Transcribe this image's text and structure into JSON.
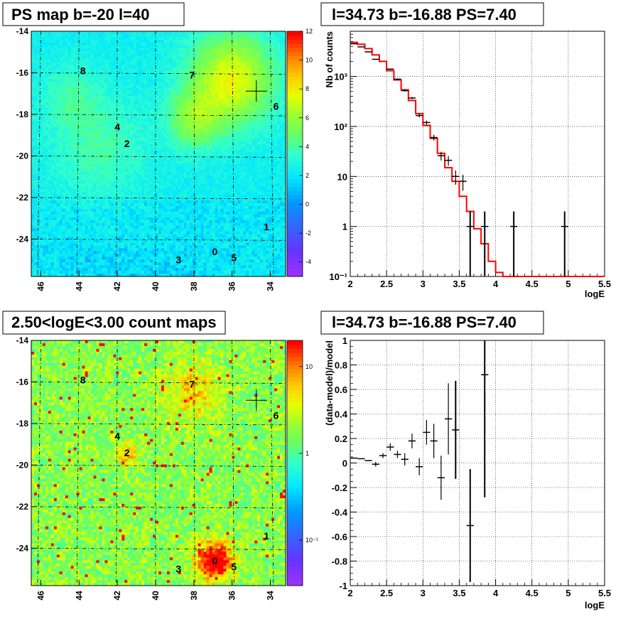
{
  "chart_data": [
    {
      "type": "heatmap",
      "panel": "top-left",
      "title": "PS map b=-20 l=40",
      "x_ticks": [
        "46",
        "44",
        "42",
        "40",
        "38",
        "36",
        "34"
      ],
      "y_ticks": [
        "-14",
        "-16",
        "-18",
        "-20",
        "-22",
        "-24"
      ],
      "xlim": [
        46.5,
        33.2
      ],
      "ylim": [
        -25.8,
        -14
      ],
      "colorbar": {
        "range": [
          -5,
          12
        ],
        "ticks": [
          "-4",
          "-2",
          "0",
          "2",
          "4",
          "6",
          "8",
          "10",
          "12"
        ],
        "log": false
      },
      "sources": [
        {
          "label": "0",
          "l": 36.9,
          "b": -24.6
        },
        {
          "label": "1",
          "l": 34.2,
          "b": -23.4
        },
        {
          "label": "2",
          "l": 41.5,
          "b": -19.4
        },
        {
          "label": "3",
          "l": 38.8,
          "b": -25.0
        },
        {
          "label": "4",
          "l": 42.0,
          "b": -18.6
        },
        {
          "label": "5",
          "l": 35.9,
          "b": -24.9
        },
        {
          "label": "6",
          "l": 33.7,
          "b": -17.6
        },
        {
          "label": "7",
          "l": 38.1,
          "b": -16.1
        },
        {
          "label": "8",
          "l": 43.8,
          "b": -15.9
        }
      ],
      "marker": {
        "l": 34.73,
        "b": -16.88
      }
    },
    {
      "type": "line",
      "panel": "top-right",
      "title": "l=34.73 b=-16.88 PS=7.40",
      "xlabel": "logE",
      "ylabel": "Nb of counts",
      "xlim": [
        2,
        5.5
      ],
      "ylim": [
        0.1,
        8000
      ],
      "yscale": "log",
      "x_ticks": [
        "2",
        "2.5",
        "3",
        "3.5",
        "4",
        "4.5",
        "5",
        "5.5"
      ],
      "y_ticks": [
        "10⁻¹",
        "1",
        "10",
        "10²",
        "10³"
      ],
      "grid": true,
      "data_points": [
        {
          "x": 2.05,
          "y": 4500
        },
        {
          "x": 2.15,
          "y": 3900
        },
        {
          "x": 2.25,
          "y": 3100
        },
        {
          "x": 2.35,
          "y": 2200
        },
        {
          "x": 2.55,
          "y": 1400
        },
        {
          "x": 2.65,
          "y": 880
        },
        {
          "x": 2.75,
          "y": 520
        },
        {
          "x": 2.85,
          "y": 370
        },
        {
          "x": 2.95,
          "y": 165
        },
        {
          "x": 3.05,
          "y": 120
        },
        {
          "x": 3.15,
          "y": 60
        },
        {
          "x": 3.25,
          "y": 26
        },
        {
          "x": 3.35,
          "y": 21
        },
        {
          "x": 3.45,
          "y": 10
        },
        {
          "x": 3.55,
          "y": 8
        },
        {
          "x": 3.65,
          "y": 1
        },
        {
          "x": 3.85,
          "y": 1
        },
        {
          "x": 4.25,
          "y": 1
        },
        {
          "x": 4.95,
          "y": 1
        }
      ],
      "model_bins": [
        {
          "x": 2.05,
          "y": 4800
        },
        {
          "x": 2.15,
          "y": 4400
        },
        {
          "x": 2.25,
          "y": 3600
        },
        {
          "x": 2.35,
          "y": 2700
        },
        {
          "x": 2.45,
          "y": 2000
        },
        {
          "x": 2.55,
          "y": 1300
        },
        {
          "x": 2.65,
          "y": 850
        },
        {
          "x": 2.75,
          "y": 540
        },
        {
          "x": 2.85,
          "y": 330
        },
        {
          "x": 2.95,
          "y": 180
        },
        {
          "x": 3.05,
          "y": 105
        },
        {
          "x": 3.15,
          "y": 58
        },
        {
          "x": 3.25,
          "y": 29
        },
        {
          "x": 3.35,
          "y": 15
        },
        {
          "x": 3.45,
          "y": 8
        },
        {
          "x": 3.55,
          "y": 4
        },
        {
          "x": 3.65,
          "y": 2
        },
        {
          "x": 3.75,
          "y": 0.9
        },
        {
          "x": 3.85,
          "y": 0.45
        },
        {
          "x": 3.95,
          "y": 0.2
        },
        {
          "x": 4.05,
          "y": 0.12
        },
        {
          "x": 4.15,
          "y": 0.1
        },
        {
          "x": 5.45,
          "y": 0.1
        }
      ],
      "model_color": "#ff0000"
    },
    {
      "type": "heatmap",
      "panel": "bottom-left",
      "title": "2.50<logE<3.00 count maps",
      "x_ticks": [
        "46",
        "44",
        "42",
        "40",
        "38",
        "36",
        "34"
      ],
      "y_ticks": [
        "-14",
        "-16",
        "-18",
        "-20",
        "-22",
        "-24"
      ],
      "xlim": [
        46.5,
        33.2
      ],
      "ylim": [
        -25.8,
        -14
      ],
      "colorbar": {
        "range": [
          0.03,
          20
        ],
        "ticks": [
          "10",
          "1",
          "10⁻¹"
        ],
        "log": true
      },
      "sources": [
        {
          "label": "0",
          "l": 36.9,
          "b": -24.6
        },
        {
          "label": "1",
          "l": 34.2,
          "b": -23.4
        },
        {
          "label": "2",
          "l": 41.5,
          "b": -19.4
        },
        {
          "label": "3",
          "l": 38.8,
          "b": -25.0
        },
        {
          "label": "4",
          "l": 42.0,
          "b": -18.6
        },
        {
          "label": "5",
          "l": 35.9,
          "b": -24.9
        },
        {
          "label": "6",
          "l": 33.7,
          "b": -17.6
        },
        {
          "label": "7",
          "l": 38.1,
          "b": -16.1
        },
        {
          "label": "8",
          "l": 43.8,
          "b": -15.9
        }
      ],
      "marker": {
        "l": 34.73,
        "b": -16.88
      }
    },
    {
      "type": "scatter",
      "panel": "bottom-right",
      "title": "l=34.73 b=-16.88 PS=7.40",
      "xlabel": "logE",
      "ylabel": "(data-model)/model",
      "xlim": [
        2,
        5.5
      ],
      "ylim": [
        -1,
        1
      ],
      "x_ticks": [
        "2",
        "2.5",
        "3",
        "3.5",
        "4",
        "4.5",
        "5",
        "5.5"
      ],
      "y_ticks": [
        "-1",
        "-0.8",
        "-0.6",
        "-0.4",
        "-0.2",
        "0",
        "0.2",
        "0.4",
        "0.6",
        "0.8",
        "1"
      ],
      "grid": true,
      "residuals": [
        {
          "x": 2.05,
          "y": 0.04,
          "err": 0.0
        },
        {
          "x": 2.15,
          "y": 0.035,
          "err": 0.0
        },
        {
          "x": 2.25,
          "y": 0.02,
          "err": 0.0
        },
        {
          "x": 2.35,
          "y": -0.01,
          "err": 0.02
        },
        {
          "x": 2.45,
          "y": 0.06,
          "err": 0.02
        },
        {
          "x": 2.55,
          "y": 0.13,
          "err": 0.03
        },
        {
          "x": 2.65,
          "y": 0.07,
          "err": 0.03
        },
        {
          "x": 2.75,
          "y": 0.03,
          "err": 0.05
        },
        {
          "x": 2.85,
          "y": 0.18,
          "err": 0.06
        },
        {
          "x": 2.95,
          "y": -0.03,
          "err": 0.07
        },
        {
          "x": 3.05,
          "y": 0.25,
          "err": 0.1
        },
        {
          "x": 3.15,
          "y": 0.18,
          "err": 0.14
        },
        {
          "x": 3.25,
          "y": -0.12,
          "err": 0.18
        },
        {
          "x": 3.35,
          "y": 0.36,
          "err": 0.29
        },
        {
          "x": 3.45,
          "y": 0.27,
          "err": 0.4
        },
        {
          "x": 3.65,
          "y": -0.51,
          "err": 0.46
        },
        {
          "x": 3.85,
          "y": 0.72,
          "err": 1.0
        }
      ]
    }
  ]
}
